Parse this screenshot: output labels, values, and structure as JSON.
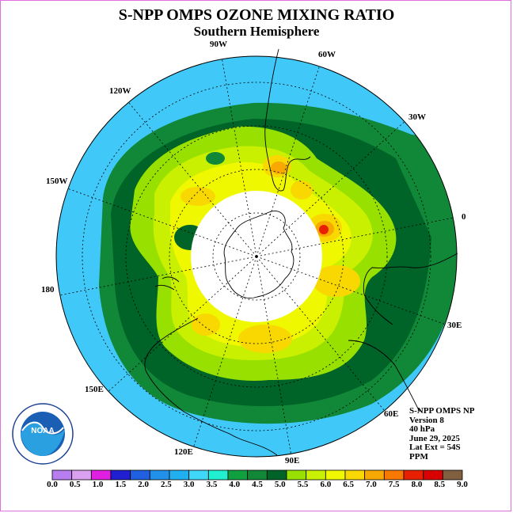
{
  "title": "S-NPP OMPS OZONE MIXING RATIO",
  "subtitle": "Southern Hemisphere",
  "longitude_labels": {
    "w90": "90W",
    "w60": "60W",
    "w30": "30W",
    "e0": "0",
    "w120": "120W",
    "w150": "150W",
    "d180": "180",
    "e30": "30E",
    "e60": "60E",
    "e90": "90E",
    "e120": "120E",
    "e150": "150E"
  },
  "info": {
    "instrument": "S-NPP OMPS NP",
    "version": "Version 8",
    "level": "40 hPa",
    "date": "June 29, 2025",
    "lat_ext": "Lat Ext = 54S",
    "units": "PPM"
  },
  "logo_text": "NOAA",
  "colorbar": {
    "labels": [
      "0.0",
      "0.5",
      "1.0",
      "1.5",
      "2.0",
      "2.5",
      "3.0",
      "3.5",
      "4.0",
      "4.5",
      "5.0",
      "5.5",
      "6.0",
      "6.5",
      "7.0",
      "7.5",
      "8.0",
      "8.5",
      "9.0"
    ],
    "colors": [
      "#b87ef0",
      "#dca0f0",
      "#e020e0",
      "#2020d0",
      "#2060e0",
      "#2090e8",
      "#20b0f0",
      "#40d8f8",
      "#20f0d0",
      "#10a040",
      "#108838",
      "#006428",
      "#98e000",
      "#c8f000",
      "#f0f800",
      "#f8d800",
      "#f8a800",
      "#f87800",
      "#e82000",
      "#d80000",
      "#806040"
    ]
  }
}
